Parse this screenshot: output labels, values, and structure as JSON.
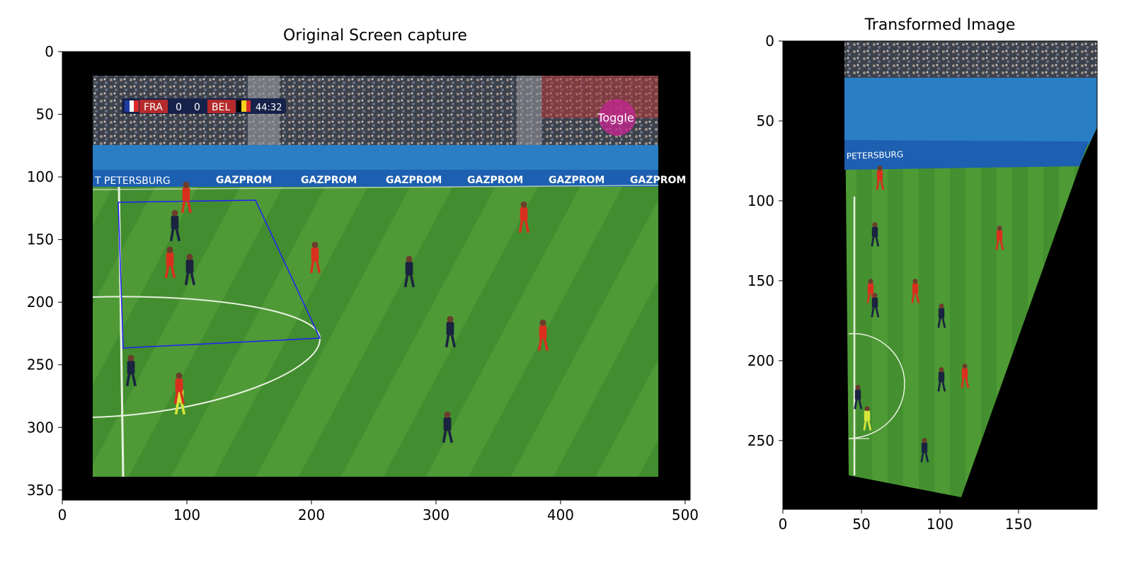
{
  "left_panel": {
    "title": "Original Screen capture",
    "x_ticks": [
      0,
      100,
      200,
      300,
      400,
      500
    ],
    "y_ticks": [
      0,
      50,
      100,
      150,
      200,
      250,
      300,
      350
    ],
    "x_range": [
      0,
      504
    ],
    "y_range": [
      358,
      0
    ],
    "overlay": {
      "scoreboard": {
        "team1": "FRA",
        "score1": "0",
        "score2": "0",
        "team2": "BEL",
        "clock": "44:32"
      },
      "channel_logo": "Toggle",
      "board_text_city": "T PETERSBURG",
      "board_text_sponsor": "GAZPROM",
      "selection_quad_color": "#1f1fff"
    }
  },
  "right_panel": {
    "title": "Transformed Image",
    "x_ticks": [
      0,
      50,
      100,
      150
    ],
    "y_ticks": [
      0,
      50,
      100,
      150,
      200,
      250
    ],
    "x_range": [
      0,
      200
    ],
    "y_range": [
      293,
      0
    ],
    "overlay": {
      "board_text": "PETERSBURG"
    }
  },
  "colors": {
    "pitch_light": "#4f9a36",
    "pitch_dark": "#3f8a2c",
    "stand": "#4a5058",
    "board_blue": "#1d5fb0",
    "team_red": "#d9301e",
    "team_navy": "#1a2440",
    "background_black": "#000000"
  }
}
